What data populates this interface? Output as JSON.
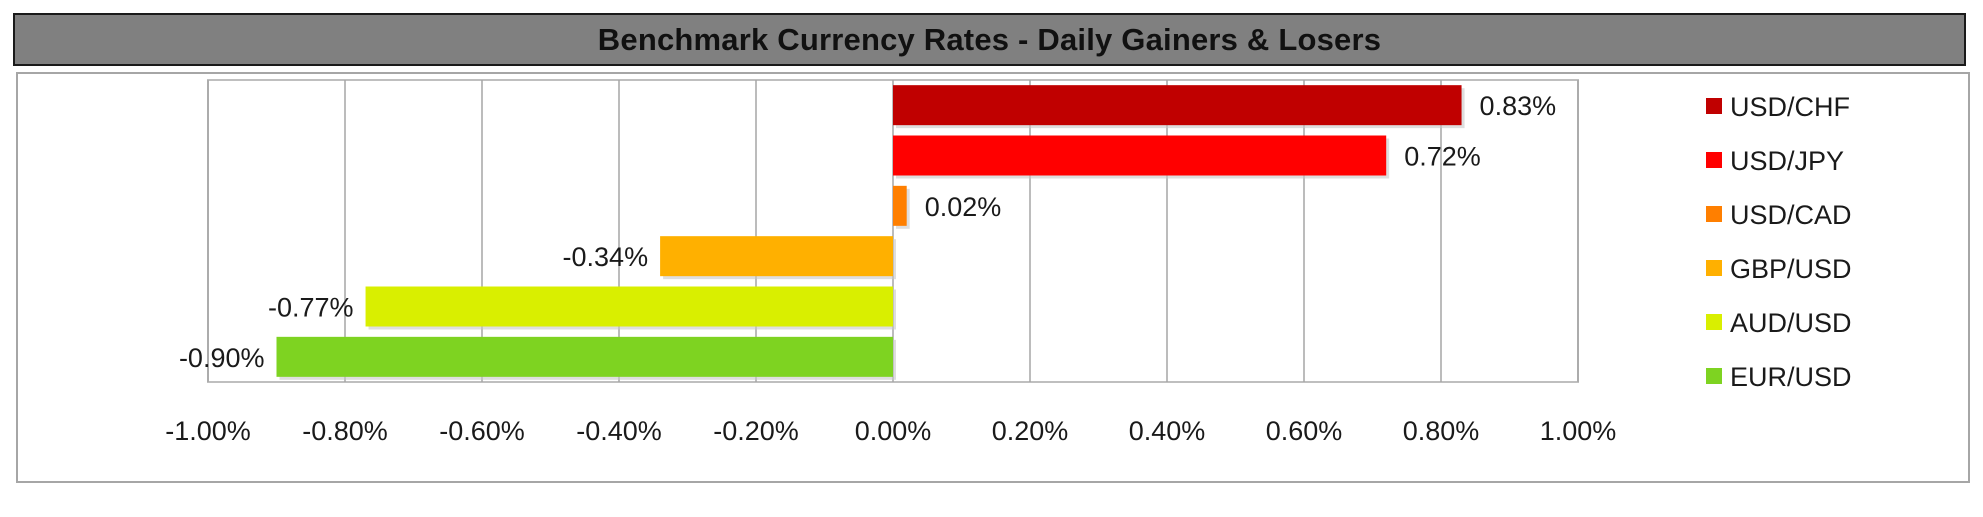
{
  "title": "Benchmark Currency Rates - Daily Gainers & Losers",
  "chart_data": {
    "type": "bar",
    "orientation": "horizontal",
    "title": "Benchmark Currency Rates - Daily Gainers & Losers",
    "xlabel": "",
    "ylabel": "",
    "xlim": [
      -1.0,
      1.0
    ],
    "grid": true,
    "legend_position": "right",
    "ticks": [
      "-1.00%",
      "-0.80%",
      "-0.60%",
      "-0.40%",
      "-0.20%",
      "0.00%",
      "0.20%",
      "0.40%",
      "0.60%",
      "0.80%",
      "1.00%"
    ],
    "tick_values": [
      -1.0,
      -0.8,
      -0.6,
      -0.4,
      -0.2,
      0.0,
      0.2,
      0.4,
      0.6,
      0.8,
      1.0
    ],
    "series": [
      {
        "name": "USD/CHF",
        "value": 0.83,
        "label": "0.83%",
        "color": "#c00000"
      },
      {
        "name": "USD/JPY",
        "value": 0.72,
        "label": "0.72%",
        "color": "#ff0000"
      },
      {
        "name": "USD/CAD",
        "value": 0.02,
        "label": "0.02%",
        "color": "#ff7f00"
      },
      {
        "name": "GBP/USD",
        "value": -0.34,
        "label": "-0.34%",
        "color": "#ffb000"
      },
      {
        "name": "AUD/USD",
        "value": -0.77,
        "label": "-0.77%",
        "color": "#d9ef00"
      },
      {
        "name": "EUR/USD",
        "value": -0.9,
        "label": "-0.90%",
        "color": "#7ed321"
      }
    ]
  }
}
